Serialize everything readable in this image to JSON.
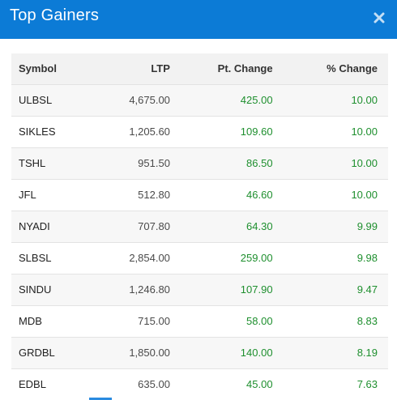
{
  "modal": {
    "title": "Top Gainers",
    "close_icon": "close-icon"
  },
  "table": {
    "headers": {
      "symbol": "Symbol",
      "ltp": "LTP",
      "pt_change": "Pt. Change",
      "pct_change": "% Change"
    },
    "rows": [
      {
        "symbol": "ULBSL",
        "ltp": "4,675.00",
        "pt_change": "425.00",
        "pct_change": "10.00"
      },
      {
        "symbol": "SIKLES",
        "ltp": "1,205.60",
        "pt_change": "109.60",
        "pct_change": "10.00"
      },
      {
        "symbol": "TSHL",
        "ltp": "951.50",
        "pt_change": "86.50",
        "pct_change": "10.00"
      },
      {
        "symbol": "JFL",
        "ltp": "512.80",
        "pt_change": "46.60",
        "pct_change": "10.00"
      },
      {
        "symbol": "NYADI",
        "ltp": "707.80",
        "pt_change": "64.30",
        "pct_change": "9.99"
      },
      {
        "symbol": "SLBSL",
        "ltp": "2,854.00",
        "pt_change": "259.00",
        "pct_change": "9.98"
      },
      {
        "symbol": "SINDU",
        "ltp": "1,246.80",
        "pt_change": "107.90",
        "pct_change": "9.47"
      },
      {
        "symbol": "MDB",
        "ltp": "715.00",
        "pt_change": "58.00",
        "pct_change": "8.83"
      },
      {
        "symbol": "GRDBL",
        "ltp": "1,850.00",
        "pt_change": "140.00",
        "pct_change": "8.19"
      },
      {
        "symbol": "EDBL",
        "ltp": "635.00",
        "pt_change": "45.00",
        "pct_change": "7.63"
      }
    ]
  },
  "colors": {
    "header_bg": "#0c7bd6",
    "gain": "#1e8f2e"
  }
}
